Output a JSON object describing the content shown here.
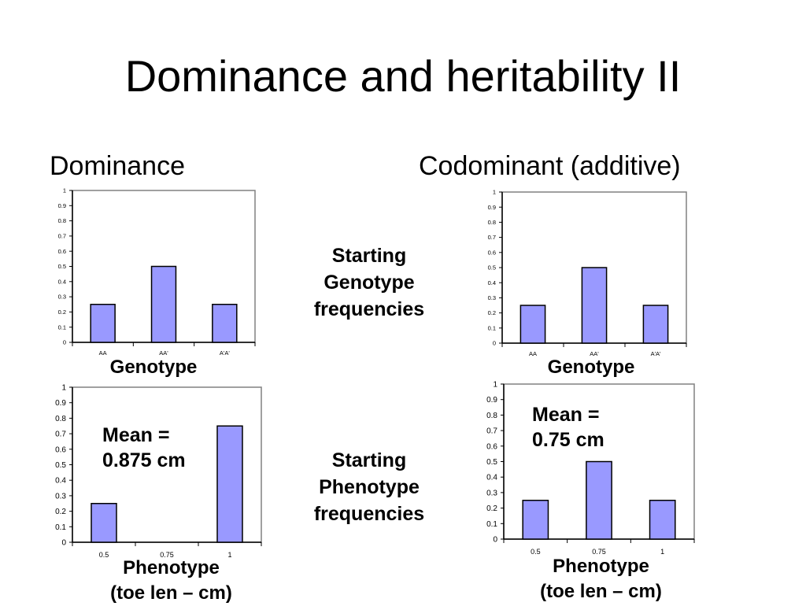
{
  "slide": {
    "title": "Dominance and heritability II",
    "left_heading": "Dominance",
    "right_heading": "Codominant (additive)",
    "center_top": [
      "Starting",
      "Genotype",
      "frequencies"
    ],
    "center_bottom": [
      "Starting",
      "Phenotype",
      "frequencies"
    ],
    "genotype_axis_title": "Genotype",
    "phenotype_axis_title": [
      "Phenotype",
      "(toe len – cm)"
    ],
    "mean_left": [
      "Mean =",
      "0.875 cm"
    ],
    "mean_right": [
      "Mean =",
      "0.75 cm"
    ]
  },
  "colors": {
    "bar_fill": "#9999ff",
    "bar_stroke": "#000000",
    "frame": "#808080"
  },
  "chart_data": [
    {
      "id": "dom-genotype",
      "type": "bar",
      "categories": [
        "AA",
        "AA'",
        "A'A'"
      ],
      "values": [
        0.25,
        0.5,
        0.25
      ],
      "xlabel": "Genotype",
      "ylabel": "",
      "ylim": [
        0,
        1
      ],
      "yticks": [
        "0",
        "0.1",
        "0.2",
        "0.3",
        "0.4",
        "0.5",
        "0.6",
        "0.7",
        "0.8",
        "0.9",
        "1"
      ]
    },
    {
      "id": "dom-phenotype",
      "type": "bar",
      "categories": [
        "0.5",
        "0.75",
        "1"
      ],
      "values": [
        0.25,
        0,
        0.75
      ],
      "xlabel": "Phenotype (toe len – cm)",
      "ylabel": "",
      "ylim": [
        0,
        1
      ],
      "yticks": [
        "0",
        "0.1",
        "0.2",
        "0.3",
        "0.4",
        "0.5",
        "0.6",
        "0.7",
        "0.8",
        "0.9",
        "1"
      ]
    },
    {
      "id": "cod-genotype",
      "type": "bar",
      "categories": [
        "AA",
        "AA'",
        "A'A'"
      ],
      "values": [
        0.25,
        0.5,
        0.25
      ],
      "xlabel": "Genotype",
      "ylabel": "",
      "ylim": [
        0,
        1
      ],
      "yticks": [
        "0",
        "0.1",
        "0.2",
        "0.3",
        "0.4",
        "0.5",
        "0.6",
        "0.7",
        "0.8",
        "0.9",
        "1"
      ]
    },
    {
      "id": "cod-phenotype",
      "type": "bar",
      "categories": [
        "0.5",
        "0.75",
        "1"
      ],
      "values": [
        0.25,
        0.5,
        0.25
      ],
      "xlabel": "Phenotype (toe len – cm)",
      "ylabel": "",
      "ylim": [
        0,
        1
      ],
      "yticks": [
        "0",
        "0.1",
        "0.2",
        "0.3",
        "0.4",
        "0.5",
        "0.6",
        "0.7",
        "0.8",
        "0.9",
        "1"
      ]
    }
  ]
}
